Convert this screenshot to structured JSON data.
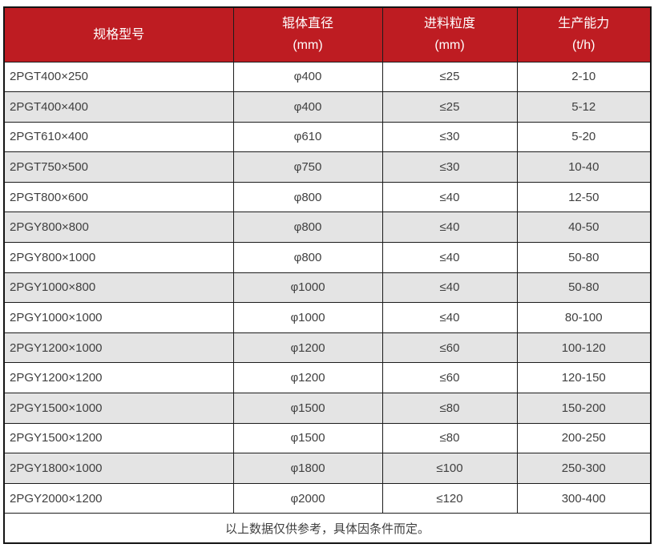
{
  "theme": {
    "header_bg": "#be1c22",
    "header_text": "#ffffff",
    "alt_row_bg": "#e4e4e4",
    "row_bg": "#ffffff",
    "body_text": "#404040",
    "border_color": "#1c1c1c"
  },
  "table": {
    "columns": [
      {
        "title": "规格型号",
        "unit": ""
      },
      {
        "title": "辊体直径",
        "unit": "(mm)"
      },
      {
        "title": "进料粒度",
        "unit": "(mm)"
      },
      {
        "title": "生产能力",
        "unit": "(t/h)"
      }
    ],
    "rows": [
      [
        "2PGT400×250",
        "φ400",
        "≤25",
        "2-10"
      ],
      [
        "2PGT400×400",
        "φ400",
        "≤25",
        "5-12"
      ],
      [
        "2PGT610×400",
        "φ610",
        "≤30",
        "5-20"
      ],
      [
        "2PGT750×500",
        "φ750",
        "≤30",
        "10-40"
      ],
      [
        "2PGT800×600",
        "φ800",
        "≤40",
        "12-50"
      ],
      [
        "2PGY800×800",
        "φ800",
        "≤40",
        "40-50"
      ],
      [
        "2PGY800×1000",
        "φ800",
        "≤40",
        "50-80"
      ],
      [
        "2PGY1000×800",
        "φ1000",
        "≤40",
        "50-80"
      ],
      [
        "2PGY1000×1000",
        "φ1000",
        "≤40",
        "80-100"
      ],
      [
        "2PGY1200×1000",
        "φ1200",
        "≤60",
        "100-120"
      ],
      [
        "2PGY1200×1200",
        "φ1200",
        "≤60",
        "120-150"
      ],
      [
        "2PGY1500×1000",
        "φ1500",
        "≤80",
        "150-200"
      ],
      [
        "2PGY1500×1200",
        "φ1500",
        "≤80",
        "200-250"
      ],
      [
        "2PGY1800×1000",
        "φ1800",
        "≤100",
        "250-300"
      ],
      [
        "2PGY2000×1200",
        "φ2000",
        "≤120",
        "300-400"
      ]
    ],
    "footer_note": "以上数据仅供参考，具体因条件而定。"
  }
}
